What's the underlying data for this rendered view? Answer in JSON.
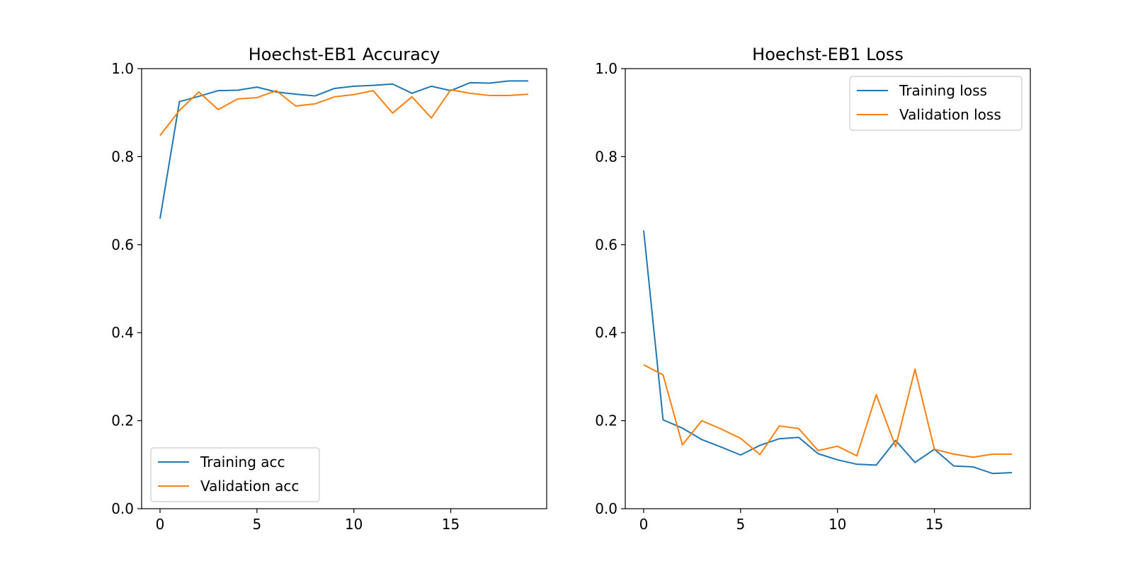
{
  "colors": {
    "training": "#1f77b4",
    "validation": "#ff7f0e"
  },
  "chart_data": [
    {
      "type": "line",
      "title": "Hoechst-EB1 Accuracy",
      "xlabel": "",
      "ylabel": "",
      "xlim": [
        -0.95,
        19.95
      ],
      "ylim": [
        0.0,
        1.0
      ],
      "xticks": [
        0,
        5,
        10,
        15
      ],
      "yticks": [
        0.0,
        0.2,
        0.4,
        0.6,
        0.8,
        1.0
      ],
      "x": [
        0,
        1,
        2,
        3,
        4,
        5,
        6,
        7,
        8,
        9,
        10,
        11,
        12,
        13,
        14,
        15,
        16,
        17,
        18,
        19
      ],
      "legend_position": "lower-left",
      "series": [
        {
          "name": "Training acc",
          "color": "#1f77b4",
          "values": [
            0.659,
            0.925,
            0.937,
            0.95,
            0.951,
            0.958,
            0.947,
            0.942,
            0.938,
            0.955,
            0.96,
            0.962,
            0.965,
            0.944,
            0.96,
            0.95,
            0.968,
            0.967,
            0.972,
            0.972
          ]
        },
        {
          "name": "Validation acc",
          "color": "#ff7f0e",
          "values": [
            0.848,
            0.905,
            0.947,
            0.907,
            0.931,
            0.934,
            0.95,
            0.915,
            0.92,
            0.936,
            0.941,
            0.95,
            0.899,
            0.936,
            0.888,
            0.952,
            0.944,
            0.939,
            0.939,
            0.942
          ]
        }
      ]
    },
    {
      "type": "line",
      "title": "Hoechst-EB1 Loss",
      "xlabel": "",
      "ylabel": "",
      "xlim": [
        -0.95,
        19.95
      ],
      "ylim": [
        0.0,
        1.0
      ],
      "xticks": [
        0,
        5,
        10,
        15
      ],
      "yticks": [
        0.0,
        0.2,
        0.4,
        0.6,
        0.8,
        1.0
      ],
      "x": [
        0,
        1,
        2,
        3,
        4,
        5,
        6,
        7,
        8,
        9,
        10,
        11,
        12,
        13,
        14,
        15,
        16,
        17,
        18,
        19
      ],
      "legend_position": "upper-right",
      "series": [
        {
          "name": "Training loss",
          "color": "#1f77b4",
          "values": [
            0.632,
            0.202,
            0.183,
            0.157,
            0.14,
            0.122,
            0.144,
            0.159,
            0.162,
            0.125,
            0.111,
            0.101,
            0.099,
            0.155,
            0.105,
            0.135,
            0.097,
            0.095,
            0.08,
            0.082
          ]
        },
        {
          "name": "Validation loss",
          "color": "#ff7f0e",
          "values": [
            0.327,
            0.304,
            0.145,
            0.2,
            0.181,
            0.16,
            0.123,
            0.188,
            0.182,
            0.132,
            0.142,
            0.12,
            0.259,
            0.141,
            0.317,
            0.135,
            0.124,
            0.117,
            0.124,
            0.124
          ]
        }
      ]
    }
  ]
}
